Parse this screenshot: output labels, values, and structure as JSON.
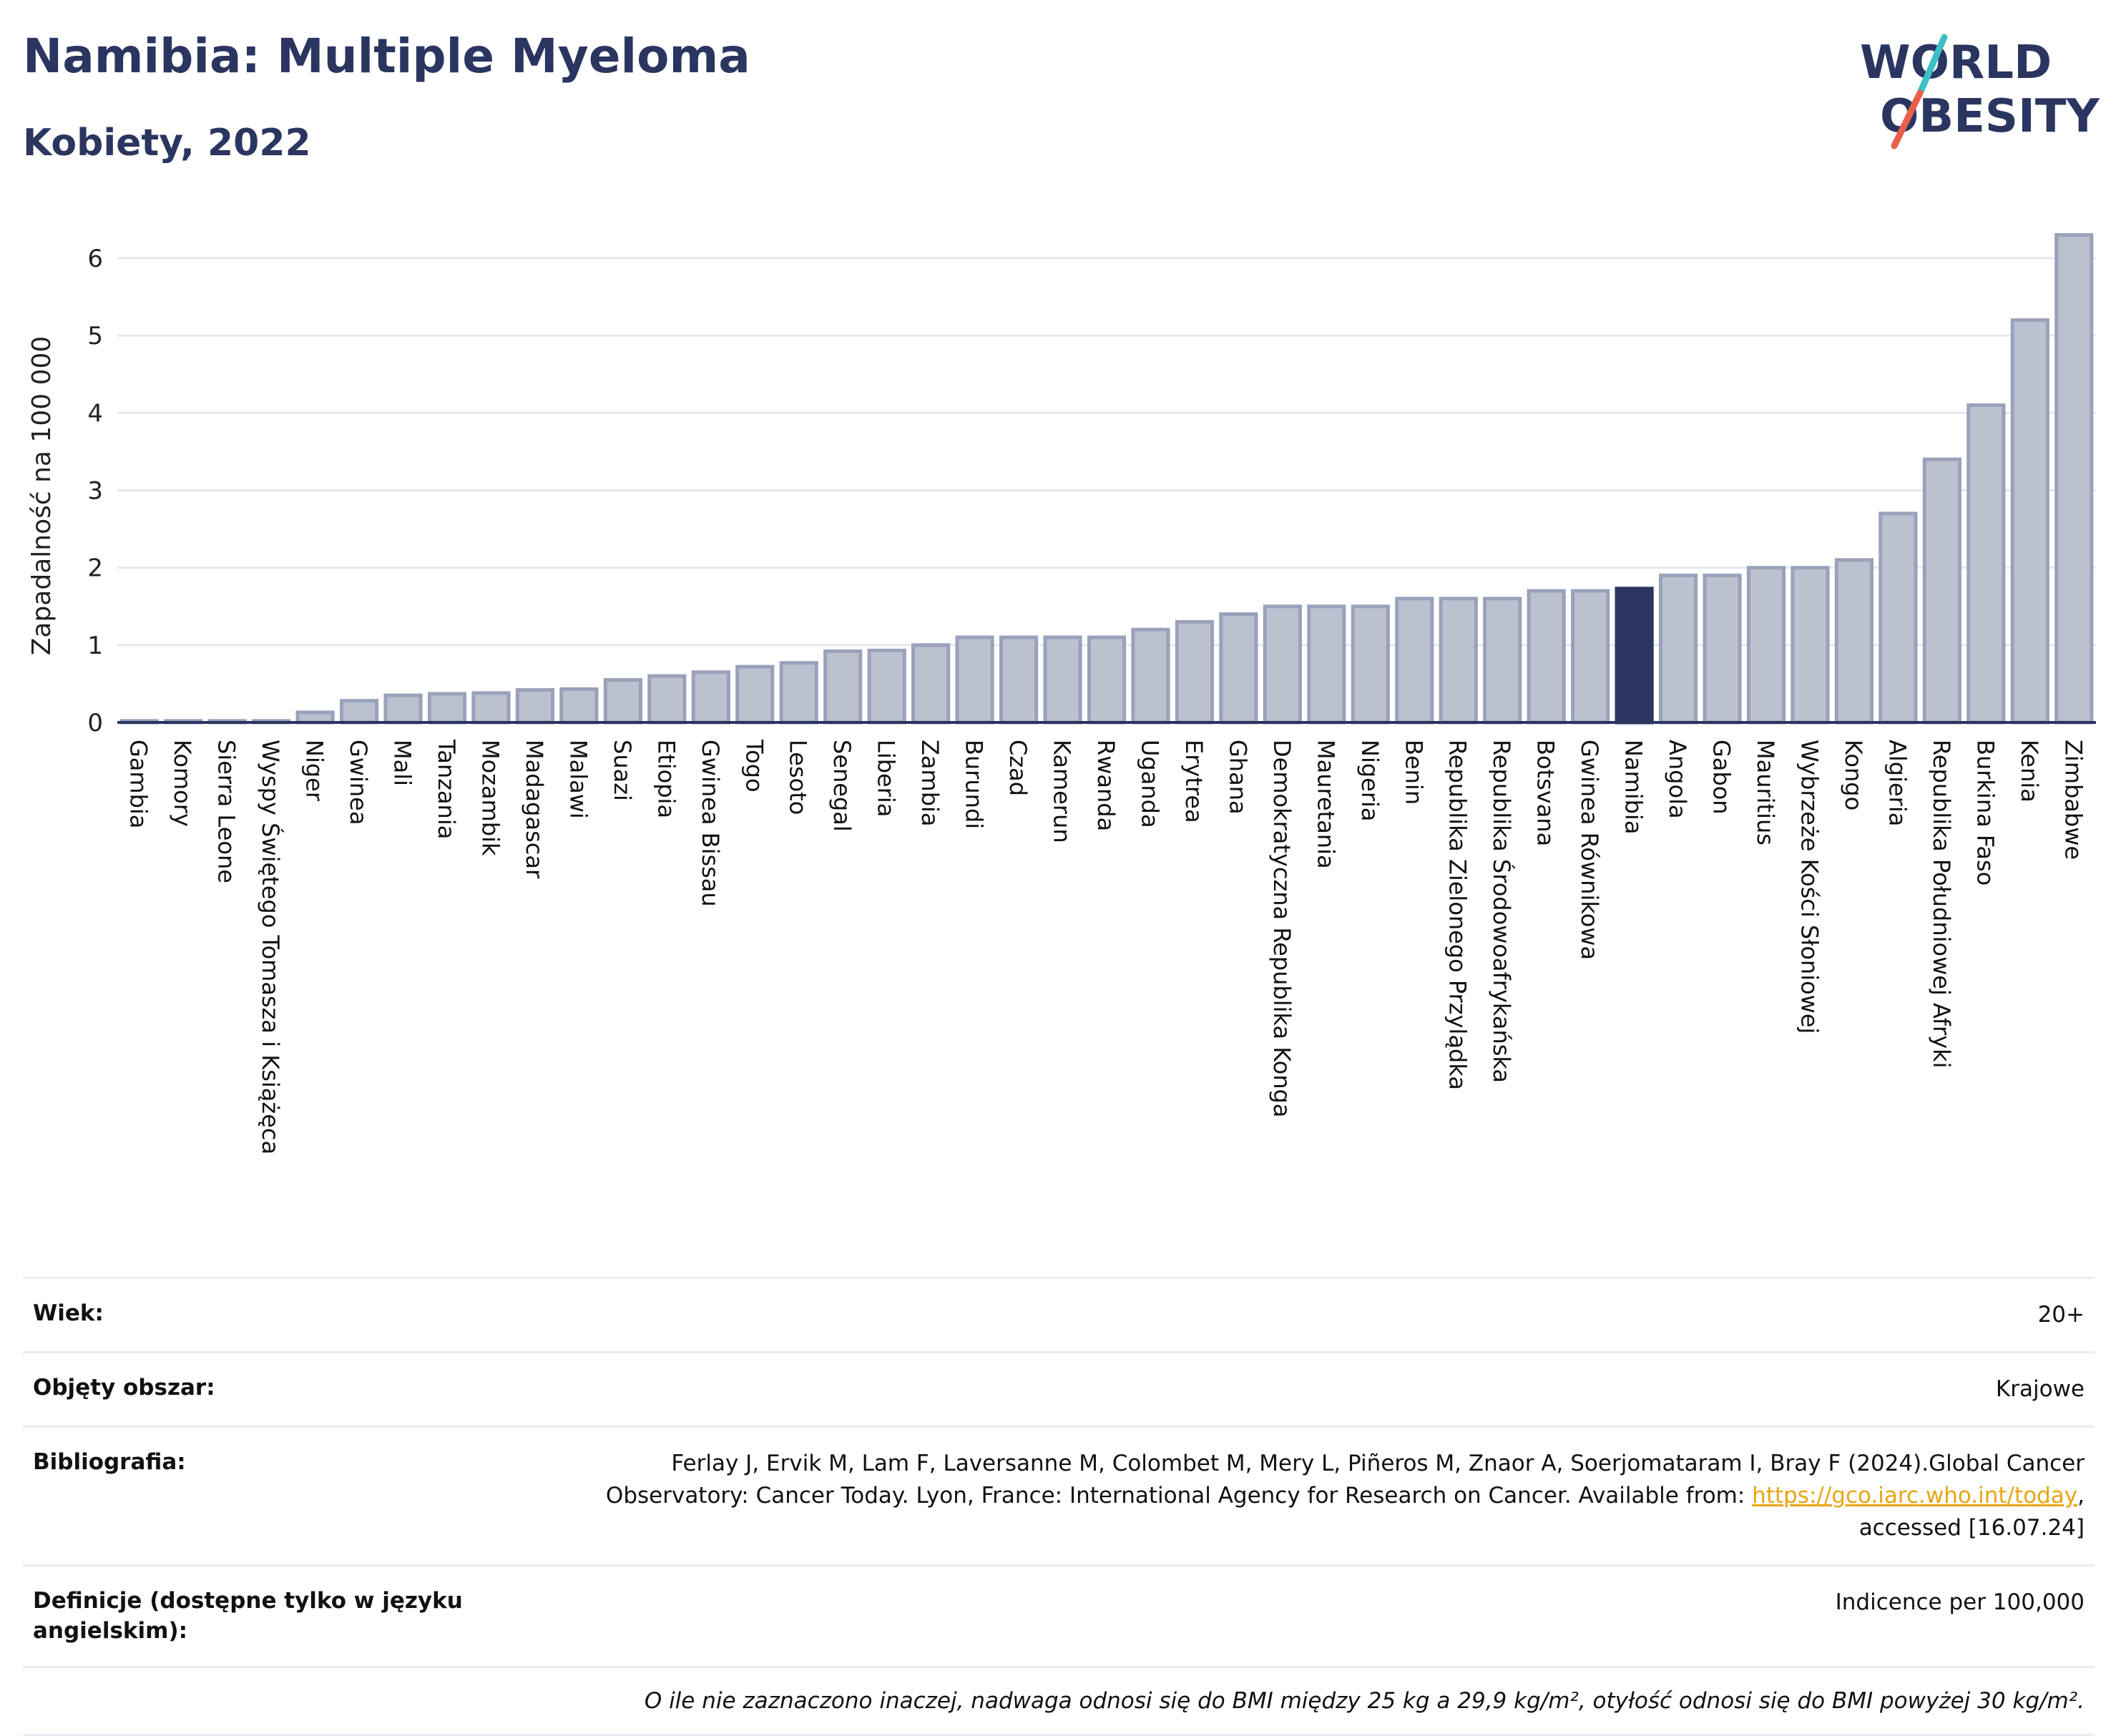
{
  "header": {
    "title": "Namibia: Multiple Myeloma",
    "subtitle": "Kobiety, 2022"
  },
  "logo": {
    "line1": "WORLD",
    "line2": "OBESITY",
    "colors": [
      "#2a3560",
      "#3cc0c3",
      "#e8604c"
    ]
  },
  "colors": {
    "bar": "#bcc1d0",
    "bar_border": "#9aa1ba",
    "highlight": "#2a3560",
    "grid": "#e5e7ee",
    "axis": "#2a3560"
  },
  "chart_data": {
    "type": "bar",
    "ylabel": "Zapadalność na 100 000",
    "ylim": [
      0,
      6.6
    ],
    "yticks": [
      0,
      1,
      2,
      3,
      4,
      5,
      6
    ],
    "grid": true,
    "highlight": "Namibia",
    "categories": [
      "Gambia",
      "Komory",
      "Sierra Leone",
      "Wyspy Świętego Tomasza i Książęca",
      "Niger",
      "Gwinea",
      "Mali",
      "Tanzania",
      "Mozambik",
      "Madagascar",
      "Malawi",
      "Suazi",
      "Etiopia",
      "Gwinea Bissau",
      "Togo",
      "Lesoto",
      "Senegal",
      "Liberia",
      "Zambia",
      "Burundi",
      "Czad",
      "Kamerun",
      "Rwanda",
      "Uganda",
      "Erytrea",
      "Ghana",
      "Demokratyczna Republika Konga",
      "Mauretania",
      "Nigeria",
      "Benin",
      "Republika Zielonego Przylądka",
      "Republika Środowoafrykańska",
      "Botsvana",
      "Gwinea Równikowa",
      "Namibia",
      "Angola",
      "Gabon",
      "Mauritius",
      "Wybrzeże Kości Słoniowej",
      "Kongo",
      "Algieria",
      "Republika Południowej Afryki",
      "Burkina Faso",
      "Kenia",
      "Zimbabwe"
    ],
    "values": [
      0.02,
      0.02,
      0.02,
      0.02,
      0.13,
      0.28,
      0.35,
      0.37,
      0.38,
      0.42,
      0.43,
      0.55,
      0.6,
      0.65,
      0.72,
      0.77,
      0.92,
      0.93,
      1.0,
      1.1,
      1.1,
      1.1,
      1.1,
      1.2,
      1.3,
      1.4,
      1.5,
      1.5,
      1.5,
      1.6,
      1.6,
      1.6,
      1.7,
      1.7,
      1.73,
      1.9,
      1.9,
      2.0,
      2.0,
      2.1,
      2.7,
      3.4,
      4.1,
      5.2,
      6.3
    ]
  },
  "info": {
    "age_label": "Wiek:",
    "age_value": "20+",
    "area_label": "Objęty obszar:",
    "area_value": "Krajowe",
    "bib_label": "Bibliografia:",
    "bib_text1": "Ferlay J, Ervik M, Lam F, Laversanne M, Colombet M, Mery L, Piñeros M, Znaor A, Soerjomataram I, Bray F (2024).Global Cancer",
    "bib_text2": "Observatory: Cancer Today. Lyon, France: International Agency for Research on Cancer. Available from: ",
    "bib_link": "https://gco.iarc.who.int/today",
    "bib_text3": ",",
    "bib_text4": "accessed [16.07.24]",
    "def_label": "Definicje (dostępne tylko w języku angielskim):",
    "def_value": "Indicence per 100,000",
    "note": "O ile nie zaznaczono inaczej, nadwaga odnosi się do BMI między 25 kg a 29,9 kg/m², otyłość odnosi się do BMI powyżej 30 kg/m²."
  }
}
